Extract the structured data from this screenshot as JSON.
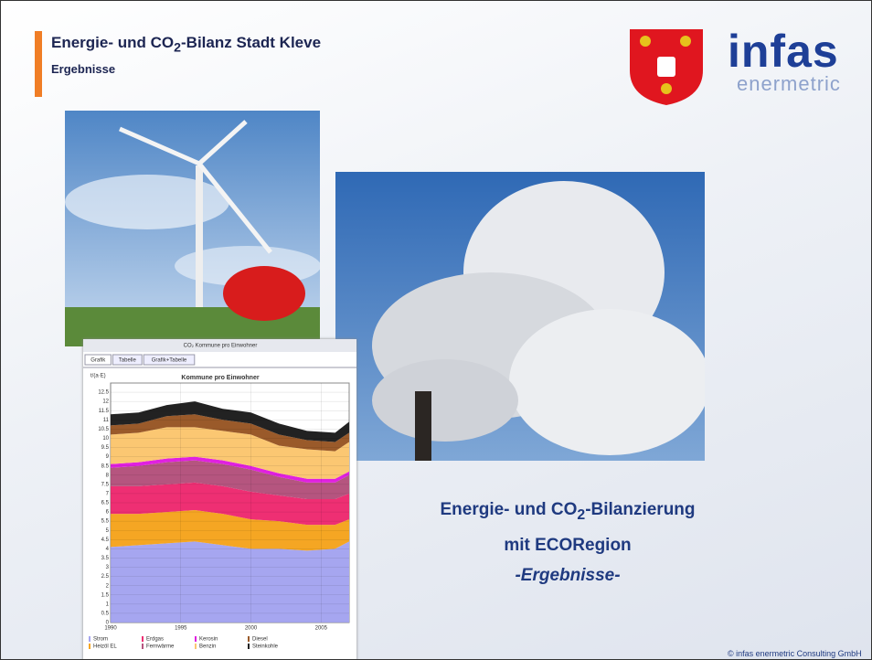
{
  "slide": {
    "title": {
      "pre": "Energie- und CO",
      "sub": "2",
      "post": "-Bilanz Stadt Kleve"
    },
    "subtitle": "Ergebnisse",
    "logo": {
      "brand": "infas",
      "sub": "enermetric"
    },
    "headline": {
      "pre": "Energie- und CO",
      "sub": "2",
      "post": "-Bilanzierung",
      "line2": "mit ECORegion",
      "line3": "-Ergebnisse-"
    },
    "footer": "© infas enermetric Consulting GmbH"
  },
  "window": {
    "title": "CO₂ Kommune pro Einwohner",
    "tabs": [
      "Grafik",
      "Tabelle",
      "Grafik+Tabelle"
    ]
  },
  "chart_data": {
    "type": "stacked-area",
    "title": "Kommune pro Einwohner",
    "y_label": "t/(a·E)",
    "x": [
      1990,
      1992,
      1994,
      1996,
      1998,
      2000,
      2002,
      2004,
      2006,
      2007
    ],
    "xlim": [
      1990,
      2007
    ],
    "xticks": [
      1990,
      1995,
      2000,
      2005
    ],
    "ylim": [
      0,
      13
    ],
    "yticks": [
      0,
      0.5,
      1,
      1.5,
      2,
      2.5,
      3,
      3.5,
      4,
      4.5,
      5,
      5.5,
      6,
      6.5,
      7,
      7.5,
      8,
      8.5,
      9,
      9.5,
      10,
      10.5,
      11,
      11.5,
      12,
      12.5
    ],
    "grid": true,
    "series": [
      {
        "name": "Strom",
        "color": "#a6a6f0",
        "values": [
          4.1,
          4.2,
          4.3,
          4.4,
          4.2,
          4.0,
          4.0,
          3.9,
          4.0,
          4.4
        ]
      },
      {
        "name": "Heizöl EL",
        "color": "#f5a623",
        "values": [
          1.8,
          1.7,
          1.7,
          1.7,
          1.7,
          1.6,
          1.5,
          1.4,
          1.3,
          1.2
        ]
      },
      {
        "name": "Erdgas",
        "color": "#ee2f73",
        "values": [
          1.5,
          1.5,
          1.5,
          1.5,
          1.5,
          1.5,
          1.4,
          1.4,
          1.4,
          1.4
        ]
      },
      {
        "name": "Fernwärme",
        "color": "#b5557f",
        "values": [
          1.0,
          1.1,
          1.2,
          1.2,
          1.2,
          1.2,
          1.0,
          0.9,
          0.9,
          1.0
        ]
      },
      {
        "name": "Kerosin",
        "color": "#e020e0",
        "values": [
          0.2,
          0.2,
          0.2,
          0.2,
          0.2,
          0.2,
          0.2,
          0.2,
          0.2,
          0.2
        ]
      },
      {
        "name": "Benzin",
        "color": "#fbc772",
        "values": [
          1.6,
          1.6,
          1.7,
          1.6,
          1.6,
          1.7,
          1.5,
          1.6,
          1.5,
          1.6
        ]
      },
      {
        "name": "Diesel",
        "color": "#9a5a2a",
        "values": [
          0.5,
          0.5,
          0.6,
          0.7,
          0.6,
          0.6,
          0.6,
          0.5,
          0.5,
          0.5
        ]
      },
      {
        "name": "Steinkohle",
        "color": "#222222",
        "values": [
          0.6,
          0.6,
          0.6,
          0.7,
          0.6,
          0.6,
          0.6,
          0.5,
          0.5,
          0.6
        ]
      }
    ]
  }
}
